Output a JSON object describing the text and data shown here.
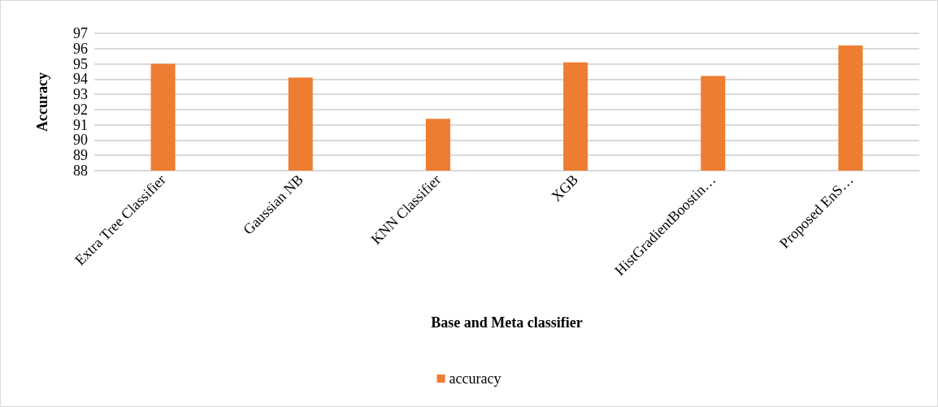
{
  "chart_data": {
    "type": "bar",
    "xlabel": "Base and Meta classifier",
    "ylabel": "Accuracy",
    "categories": [
      "Extra Tree Classifier",
      "Gaussian NB",
      "KNN Classifier",
      "XGB",
      "HistGradientBoostin…",
      "Proposed EnS…"
    ],
    "series": [
      {
        "name": "accuracy",
        "color": "#ed7d31",
        "values": [
          95.0,
          94.1,
          91.4,
          95.1,
          94.2,
          96.2
        ]
      }
    ],
    "ylim": [
      88,
      97
    ],
    "yticks": [
      88,
      89,
      90,
      91,
      92,
      93,
      94,
      95,
      96,
      97
    ],
    "grid": "y",
    "legend": "bottom"
  }
}
